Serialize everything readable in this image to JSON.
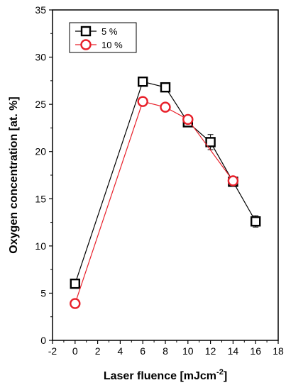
{
  "chart_data": {
    "type": "line",
    "title": "",
    "xlabel": "Laser fluence [mJcm",
    "xlabel_sup": "-2",
    "xlabel_end": "]",
    "ylabel": "Oxygen concentration [at. %]",
    "xlim": [
      -2,
      18
    ],
    "ylim": [
      0,
      35
    ],
    "xticks": [
      -2,
      0,
      2,
      4,
      6,
      8,
      10,
      12,
      14,
      16,
      18
    ],
    "yticks": [
      0,
      5,
      10,
      15,
      20,
      25,
      30,
      35
    ],
    "grid": false,
    "legend_position": "top-left",
    "series": [
      {
        "name": "5 %",
        "color": "#000000",
        "marker": "square",
        "x": [
          0,
          6,
          8,
          10,
          12,
          14,
          16
        ],
        "y": [
          6.0,
          27.4,
          26.8,
          23.1,
          21.0,
          16.8,
          12.6
        ],
        "yerr": [
          0.3,
          0.3,
          0.3,
          0.3,
          0.8,
          0.5,
          0.6
        ]
      },
      {
        "name": "10 %",
        "color": "#e8202a",
        "marker": "circle",
        "x": [
          0,
          6,
          8,
          10,
          14
        ],
        "y": [
          3.9,
          25.3,
          24.7,
          23.4,
          16.9
        ],
        "yerr": [
          0.2,
          0.2,
          0.2,
          0.2,
          0.3
        ]
      }
    ]
  }
}
